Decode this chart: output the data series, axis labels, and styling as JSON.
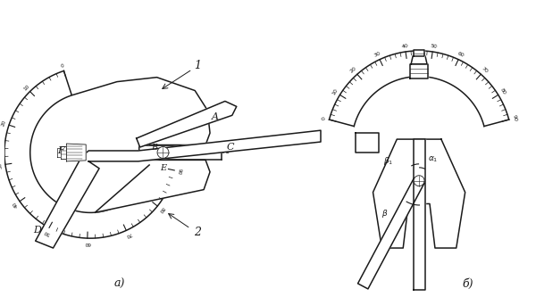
{
  "bg_color": "#ffffff",
  "line_color": "#1a1a1a",
  "fig_width": 6.0,
  "fig_height": 3.33,
  "dpi": 100,
  "caption_a": "а)",
  "caption_b": "б)",
  "tick_labels": [
    "0",
    "10",
    "20",
    "30",
    "40",
    "50",
    "60",
    "70",
    "80",
    "90"
  ]
}
